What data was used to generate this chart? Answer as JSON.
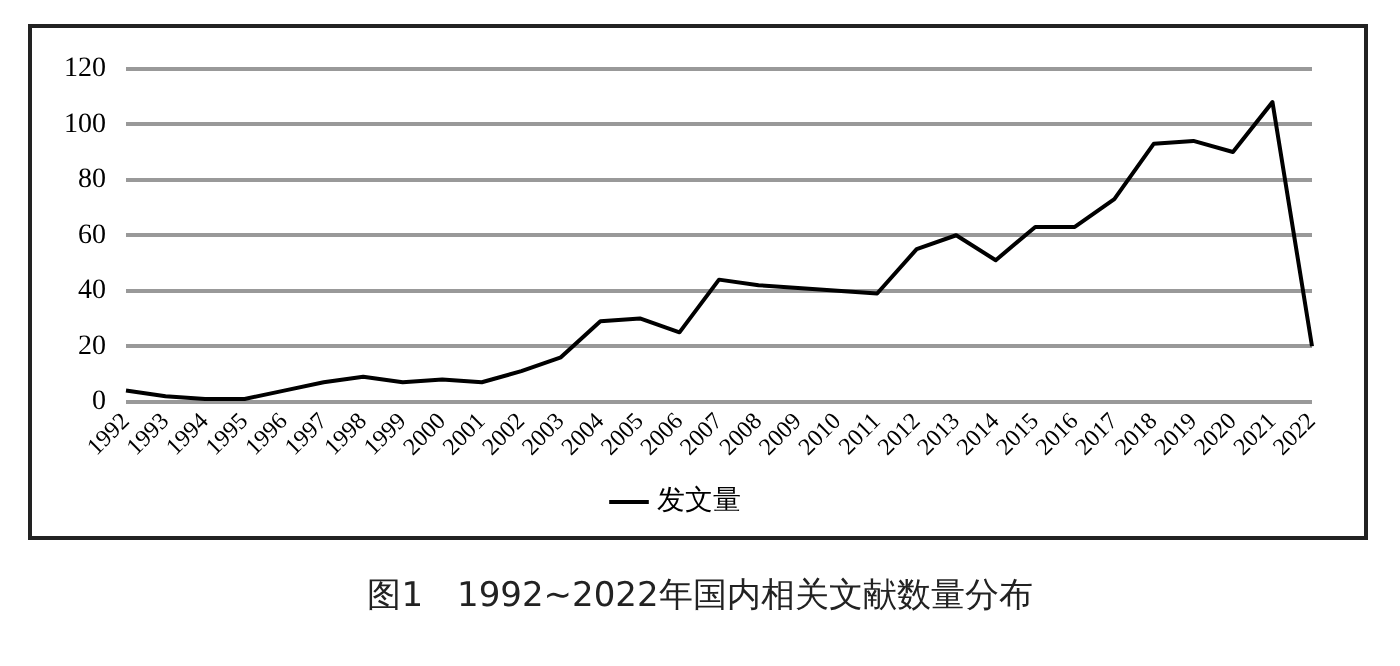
{
  "chart_data": {
    "type": "line",
    "categories": [
      "1992",
      "1993",
      "1994",
      "1995",
      "1996",
      "1997",
      "1998",
      "1999",
      "2000",
      "2001",
      "2002",
      "2003",
      "2004",
      "2005",
      "2006",
      "2007",
      "2008",
      "2009",
      "2010",
      "2011",
      "2012",
      "2013",
      "2014",
      "2015",
      "2016",
      "2017",
      "2018",
      "2019",
      "2020",
      "2021",
      "2022"
    ],
    "series": [
      {
        "name": "发文量",
        "color": "#000000",
        "values": [
          4,
          2,
          1,
          1,
          4,
          7,
          9,
          7,
          8,
          7,
          11,
          16,
          29,
          30,
          25,
          44,
          42,
          41,
          40,
          39,
          55,
          60,
          51,
          63,
          63,
          73,
          93,
          94,
          90,
          108,
          20
        ]
      }
    ],
    "ylim": [
      0,
      120
    ],
    "yticks": [
      0,
      20,
      40,
      60,
      80,
      100,
      120
    ],
    "grid": "y",
    "legend": "bottom",
    "marker": "none",
    "line_style": "solid",
    "annotations": [
      "图1　1992~2022年国内相关文献数量分布"
    ]
  }
}
